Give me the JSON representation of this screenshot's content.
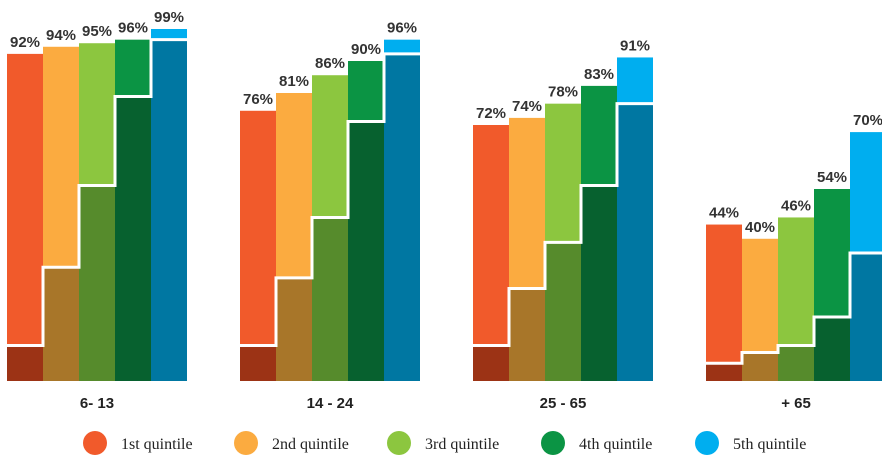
{
  "chart_data": {
    "type": "bar",
    "title": "",
    "xlabel": "",
    "ylabel": "",
    "ylim": [
      0,
      100
    ],
    "categories": [
      "6- 13",
      "14 - 24",
      "25 - 65",
      "+ 65"
    ],
    "series": [
      {
        "name": "1st quintile",
        "values": [
          92,
          76,
          72,
          44
        ],
        "color": "#f15a2b"
      },
      {
        "name": "2nd quintile",
        "values": [
          94,
          81,
          74,
          40
        ],
        "color": "#fbab40"
      },
      {
        "name": "3rd quintile",
        "values": [
          95,
          86,
          78,
          46
        ],
        "color": "#8cc63f"
      },
      {
        "name": "4th quintile",
        "values": [
          96,
          90,
          83,
          54
        ],
        "color": "#0b9444"
      },
      {
        "name": "5th quintile",
        "values": [
          99,
          96,
          91,
          70
        ],
        "color": "#00aeef"
      }
    ],
    "value_labels": [
      [
        "92%",
        "94%",
        "95%",
        "96%",
        "99%"
      ],
      [
        "76%",
        "81%",
        "86%",
        "90%",
        "96%"
      ],
      [
        "72%",
        "74%",
        "78%",
        "83%",
        "91%"
      ],
      [
        "44%",
        "40%",
        "46%",
        "54%",
        "70%"
      ]
    ],
    "inner_values_unlabeled": [
      [
        10,
        32,
        55,
        80,
        96
      ],
      [
        10,
        29,
        46,
        73,
        92
      ],
      [
        10,
        26,
        39,
        55,
        78
      ],
      [
        5,
        8,
        10,
        18,
        36
      ]
    ],
    "inner_colors": [
      "#9c3315",
      "#a87629",
      "#568b2c",
      "#07612f",
      "#0077a2"
    ],
    "legend_position": "bottom",
    "grid": false
  }
}
